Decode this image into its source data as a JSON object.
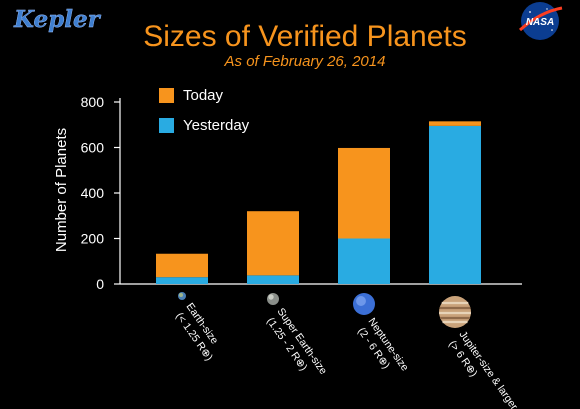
{
  "branding": {
    "kepler_logo": "Kepler",
    "nasa_logo": "NASA"
  },
  "colors": {
    "background": "#000000",
    "today": "#f7941d",
    "yesterday": "#29abe2",
    "title": "#f7941d",
    "subtitle": "#f7941d",
    "axis": "#ffffff",
    "text": "#ffffff"
  },
  "chart_data": {
    "type": "bar",
    "stacked": true,
    "title": "Sizes of Verified Planets",
    "subtitle": "As of February 26, 2014",
    "ylabel": "Number of Planets",
    "xlabel": "",
    "ylim": [
      0,
      800
    ],
    "yticks": [
      0,
      200,
      400,
      600,
      800
    ],
    "legend_position": "top-left",
    "categories": [
      {
        "label": "Earth-size",
        "sub": "(< 1.25 R⊕)",
        "planet_icon": "earth-icon"
      },
      {
        "label": "Super Earth-size",
        "sub": "(1.25 - 2 R⊕)",
        "planet_icon": "super-earth-icon"
      },
      {
        "label": "Neptune-size",
        "sub": "(2 - 6 R⊕)",
        "planet_icon": "neptune-icon"
      },
      {
        "label": "Jupiter-size & larger",
        "sub": "(> 6 R⊕)",
        "planet_icon": "jupiter-icon"
      }
    ],
    "series": [
      {
        "name": "Yesterday",
        "values": [
          30,
          38,
          200,
          695
        ]
      },
      {
        "name": "Today",
        "values": [
          103,
          282,
          398,
          20
        ]
      }
    ]
  }
}
